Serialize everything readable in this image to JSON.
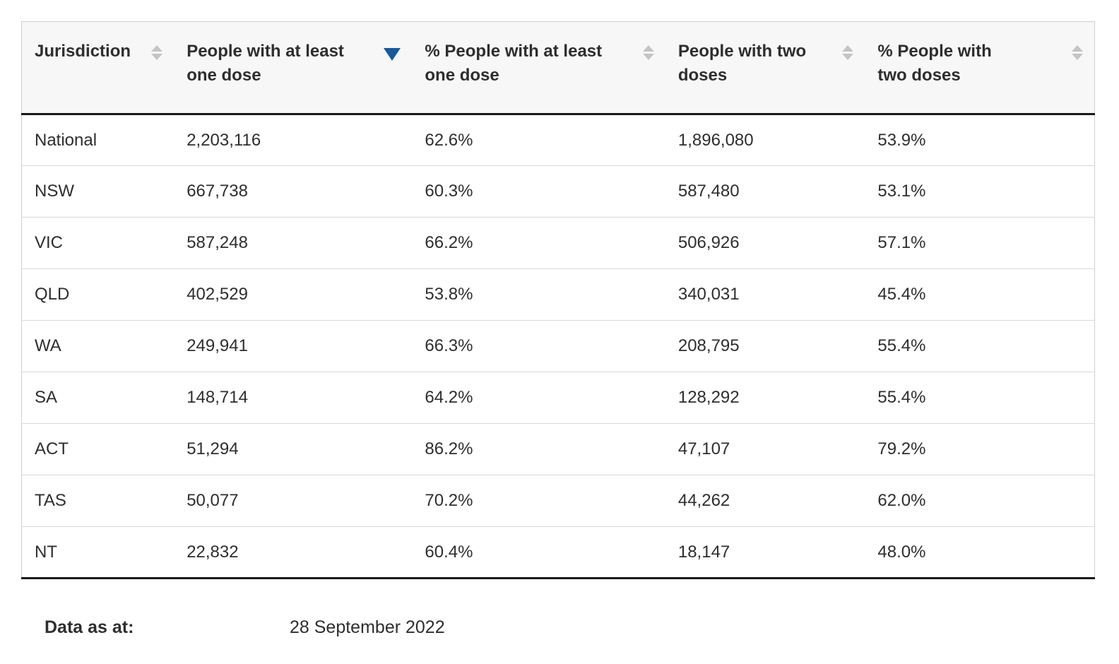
{
  "table": {
    "columns": [
      {
        "label": "Jurisdiction",
        "sort": "none"
      },
      {
        "label": "People with at least one dose",
        "sort": "desc"
      },
      {
        "label": "% People with at least one dose",
        "sort": "none"
      },
      {
        "label": "People with two doses",
        "sort": "none"
      },
      {
        "label": "% People with two doses",
        "sort": "none"
      }
    ],
    "rows": [
      [
        "National",
        "2,203,116",
        "62.6%",
        "1,896,080",
        "53.9%"
      ],
      [
        "NSW",
        "667,738",
        "60.3%",
        "587,480",
        "53.1%"
      ],
      [
        "VIC",
        "587,248",
        "66.2%",
        "506,926",
        "57.1%"
      ],
      [
        "QLD",
        "402,529",
        "53.8%",
        "340,031",
        "45.4%"
      ],
      [
        "WA",
        "249,941",
        "66.3%",
        "208,795",
        "55.4%"
      ],
      [
        "SA",
        "148,714",
        "64.2%",
        "128,292",
        "55.4%"
      ],
      [
        "ACT",
        "51,294",
        "86.2%",
        "47,107",
        "79.2%"
      ],
      [
        "TAS",
        "50,077",
        "70.2%",
        "44,262",
        "62.0%"
      ],
      [
        "NT",
        "22,832",
        "60.4%",
        "18,147",
        "48.0%"
      ]
    ]
  },
  "footer": {
    "label": "Data as at:",
    "value": "28 September 2022"
  },
  "colors": {
    "sort_active": "#19599a",
    "sort_inactive": "#c4c4c4",
    "header_background": "#f7f7f7",
    "dark_border": "#1a1a1a"
  }
}
